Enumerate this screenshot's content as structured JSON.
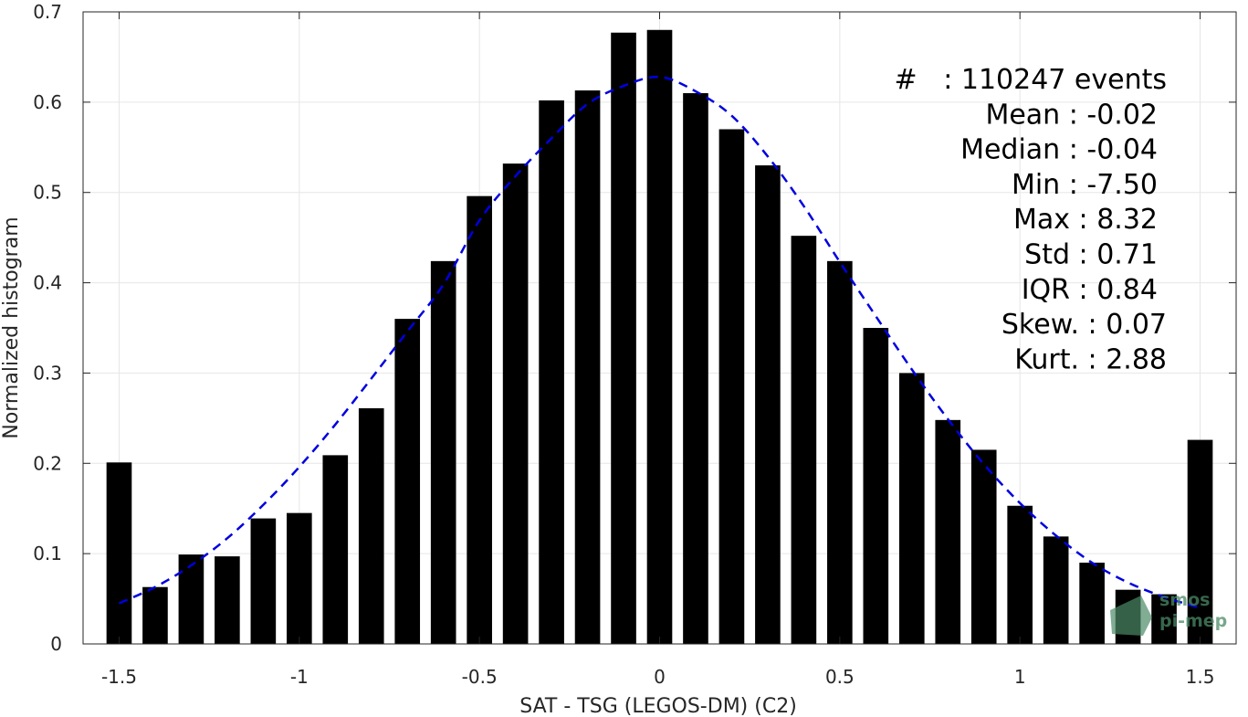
{
  "chart_data": {
    "type": "bar",
    "title": "",
    "xlabel": "SAT - TSG (LEGOS-DM) (C2)",
    "ylabel": "Normalized histogram",
    "xlim": [
      -1.6,
      1.6
    ],
    "ylim": [
      0,
      0.7
    ],
    "xticks": [
      -1.5,
      -1,
      -0.5,
      0,
      0.5,
      1,
      1.5
    ],
    "xtick_labels": [
      "-1.5",
      "-1",
      "-0.5",
      "0",
      "0.5",
      "1",
      "1.5"
    ],
    "yticks": [
      0,
      0.1,
      0.2,
      0.3,
      0.4,
      0.5,
      0.6,
      0.7
    ],
    "ytick_labels": [
      "0",
      "0.1",
      "0.2",
      "0.3",
      "0.4",
      "0.5",
      "0.6",
      "0.7"
    ],
    "grid": true,
    "bar_width": 0.07,
    "x": [
      -1.5,
      -1.4,
      -1.3,
      -1.2,
      -1.1,
      -1.0,
      -0.9,
      -0.8,
      -0.7,
      -0.6,
      -0.5,
      -0.4,
      -0.3,
      -0.2,
      -0.1,
      0.0,
      0.1,
      0.2,
      0.3,
      0.4,
      0.5,
      0.6,
      0.7,
      0.8,
      0.9,
      1.0,
      1.1,
      1.2,
      1.3,
      1.4,
      1.5
    ],
    "values": [
      0.201,
      0.063,
      0.099,
      0.097,
      0.139,
      0.145,
      0.209,
      0.261,
      0.36,
      0.424,
      0.496,
      0.532,
      0.602,
      0.613,
      0.677,
      0.68,
      0.61,
      0.57,
      0.53,
      0.452,
      0.424,
      0.35,
      0.3,
      0.248,
      0.215,
      0.153,
      0.119,
      0.09,
      0.06,
      0.055,
      0.226
    ],
    "bar_color": "#000000",
    "fit_curve": {
      "style": "dashed",
      "color": "#0000e0",
      "x": [
        -1.5,
        -1.4,
        -1.3,
        -1.2,
        -1.1,
        -1.0,
        -0.9,
        -0.8,
        -0.7,
        -0.6,
        -0.5,
        -0.4,
        -0.3,
        -0.2,
        -0.1,
        0.0,
        0.1,
        0.2,
        0.3,
        0.4,
        0.5,
        0.6,
        0.7,
        0.8,
        0.9,
        1.0,
        1.1,
        1.2,
        1.3,
        1.4,
        1.5
      ],
      "y": [
        0.045,
        0.063,
        0.087,
        0.117,
        0.154,
        0.196,
        0.243,
        0.294,
        0.346,
        0.398,
        0.469,
        0.518,
        0.56,
        0.598,
        0.618,
        0.628,
        0.612,
        0.585,
        0.54,
        0.485,
        0.423,
        0.363,
        0.304,
        0.249,
        0.199,
        0.156,
        0.12,
        0.09,
        0.068,
        0.052,
        0.04
      ]
    },
    "annotations": [
      "#   : 110247 events",
      "Mean : -0.02",
      "Median : -0.04",
      "Min : -7.50",
      "Max : 8.32",
      "Std : 0.71",
      "IQR : 0.84",
      "Skew. : 0.07",
      "Kurt. : 2.88"
    ]
  },
  "logo": {
    "name": "smos-pi-mep-logo",
    "line1": "smos",
    "line2": "pi-mep",
    "color": "#4a8a66"
  }
}
